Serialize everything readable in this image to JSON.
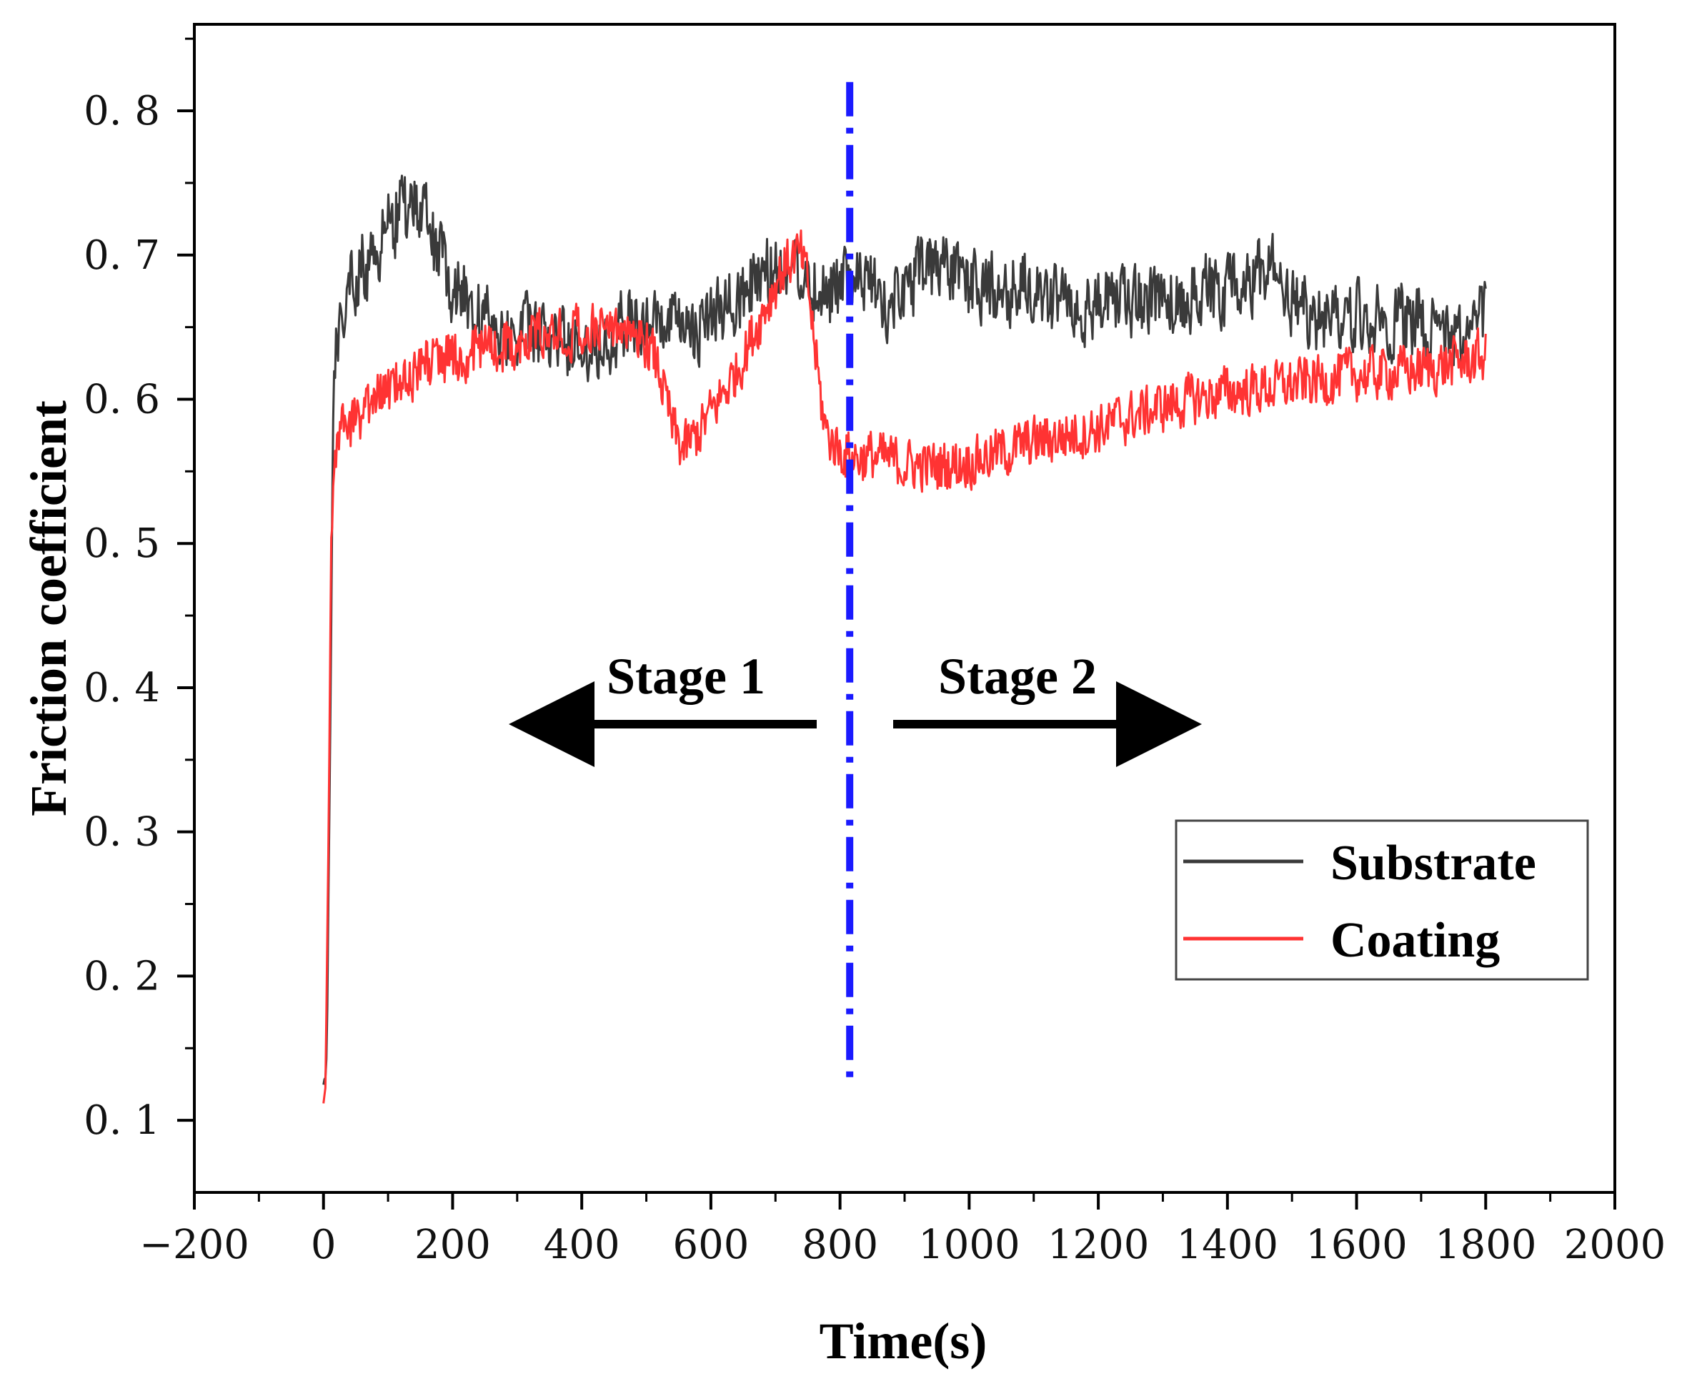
{
  "chart_data": {
    "type": "line",
    "xlabel": "Time(s)",
    "ylabel": "Friction coefficient",
    "xlim": [
      -200,
      2000
    ],
    "ylim": [
      0.05,
      0.86
    ],
    "x_ticks": [
      -200,
      0,
      200,
      400,
      600,
      800,
      1000,
      1200,
      1400,
      1600,
      1800,
      2000
    ],
    "x_tick_labels": [
      "−200",
      "0",
      "200",
      "400",
      "600",
      "800",
      "1000",
      "1200",
      "1400",
      "1600",
      "1800",
      "2000"
    ],
    "y_ticks": [
      0.1,
      0.2,
      0.3,
      0.4,
      0.5,
      0.6,
      0.7,
      0.8
    ],
    "y_tick_labels": [
      "0. 1",
      "0. 2",
      "0. 3",
      "0. 4",
      "0. 5",
      "0. 6",
      "0. 7",
      "0. 8"
    ],
    "series": [
      {
        "name": "Substrate",
        "color": "#3a3a3a",
        "noise": 0.025,
        "x": [
          0,
          5,
          10,
          15,
          25,
          40,
          60,
          80,
          100,
          120,
          140,
          160,
          180,
          200,
          240,
          280,
          320,
          360,
          400,
          440,
          480,
          520,
          560,
          600,
          640,
          680,
          700,
          720,
          740,
          760,
          780,
          800,
          840,
          880,
          920,
          960,
          1000,
          1100,
          1200,
          1300,
          1400,
          1450,
          1480,
          1500,
          1550,
          1600,
          1650,
          1700,
          1750,
          1780,
          1800
        ],
        "y": [
          0.12,
          0.14,
          0.35,
          0.6,
          0.66,
          0.68,
          0.69,
          0.7,
          0.72,
          0.73,
          0.735,
          0.72,
          0.7,
          0.68,
          0.66,
          0.65,
          0.645,
          0.64,
          0.635,
          0.645,
          0.655,
          0.65,
          0.645,
          0.655,
          0.67,
          0.685,
          0.69,
          0.695,
          0.69,
          0.68,
          0.675,
          0.68,
          0.68,
          0.665,
          0.685,
          0.69,
          0.68,
          0.675,
          0.665,
          0.67,
          0.675,
          0.685,
          0.69,
          0.665,
          0.655,
          0.66,
          0.655,
          0.655,
          0.64,
          0.655,
          0.665
        ]
      },
      {
        "name": "Coating",
        "color": "#ff3333",
        "noise": 0.018,
        "x": [
          0,
          3,
          8,
          12,
          20,
          30,
          50,
          80,
          100,
          130,
          160,
          200,
          250,
          300,
          350,
          400,
          450,
          480,
          500,
          520,
          540,
          555,
          570,
          600,
          640,
          680,
          710,
          730,
          740,
          750,
          760,
          770,
          780,
          800,
          820,
          850,
          900,
          950,
          1000,
          1050,
          1100,
          1200,
          1300,
          1400,
          1500,
          1600,
          1700,
          1780,
          1800
        ],
        "y": [
          0.11,
          0.12,
          0.3,
          0.5,
          0.57,
          0.58,
          0.585,
          0.6,
          0.605,
          0.615,
          0.625,
          0.63,
          0.635,
          0.64,
          0.645,
          0.65,
          0.65,
          0.645,
          0.64,
          0.62,
          0.58,
          0.565,
          0.57,
          0.59,
          0.62,
          0.66,
          0.69,
          0.7,
          0.698,
          0.68,
          0.64,
          0.6,
          0.575,
          0.565,
          0.56,
          0.56,
          0.555,
          0.553,
          0.557,
          0.563,
          0.57,
          0.58,
          0.595,
          0.605,
          0.61,
          0.617,
          0.62,
          0.628,
          0.63
        ]
      }
    ],
    "divider": {
      "x": 815,
      "y_range": [
        0.125,
        0.82
      ],
      "color": "#1a1aff"
    },
    "annotations": [
      {
        "text": "Stage 1",
        "direction": "left"
      },
      {
        "text": "Stage 2",
        "direction": "right"
      }
    ],
    "legend": {
      "position": "right",
      "entries": [
        "Substrate",
        "Coating"
      ]
    }
  }
}
